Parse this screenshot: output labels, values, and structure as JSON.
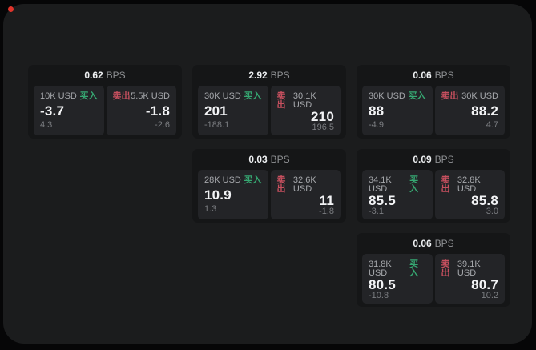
{
  "window": {
    "status_dot_color": "#e0342b",
    "panel_bg": "#1b1c1d",
    "card_bg": "#151617",
    "pane_bg": "#232427"
  },
  "labels": {
    "bps_unit": "BPS",
    "buy": "买入",
    "sell": "卖出"
  },
  "colors": {
    "buy_green": "#36a872",
    "sell_red": "#c8505f"
  },
  "cards": [
    {
      "bps": "0.62",
      "buy": {
        "amount": "10K USD",
        "price": "-3.7",
        "delta": "4.3"
      },
      "sell": {
        "amount": "5.5K USD",
        "price": "-1.8",
        "delta": "-2.6"
      }
    },
    {
      "bps": "2.92",
      "buy": {
        "amount": "30K USD",
        "price": "201",
        "delta": "-188.1"
      },
      "sell": {
        "amount": "30.1K USD",
        "price": "210",
        "delta": "196.5"
      }
    },
    {
      "bps": "0.06",
      "buy": {
        "amount": "30K USD",
        "price": "88",
        "delta": "-4.9"
      },
      "sell": {
        "amount": "30K USD",
        "price": "88.2",
        "delta": "4.7"
      }
    },
    {
      "bps": "0.03",
      "buy": {
        "amount": "28K USD",
        "price": "10.9",
        "delta": "1.3"
      },
      "sell": {
        "amount": "32.6K USD",
        "price": "11",
        "delta": "-1.8"
      }
    },
    {
      "bps": "0.09",
      "buy": {
        "amount": "34.1K USD",
        "price": "85.5",
        "delta": "-3.1"
      },
      "sell": {
        "amount": "32.8K USD",
        "price": "85.8",
        "delta": "3.0"
      }
    },
    {
      "bps": "0.06",
      "buy": {
        "amount": "31.8K USD",
        "price": "80.5",
        "delta": "-10.8"
      },
      "sell": {
        "amount": "39.1K USD",
        "price": "80.7",
        "delta": "10.2"
      }
    }
  ]
}
